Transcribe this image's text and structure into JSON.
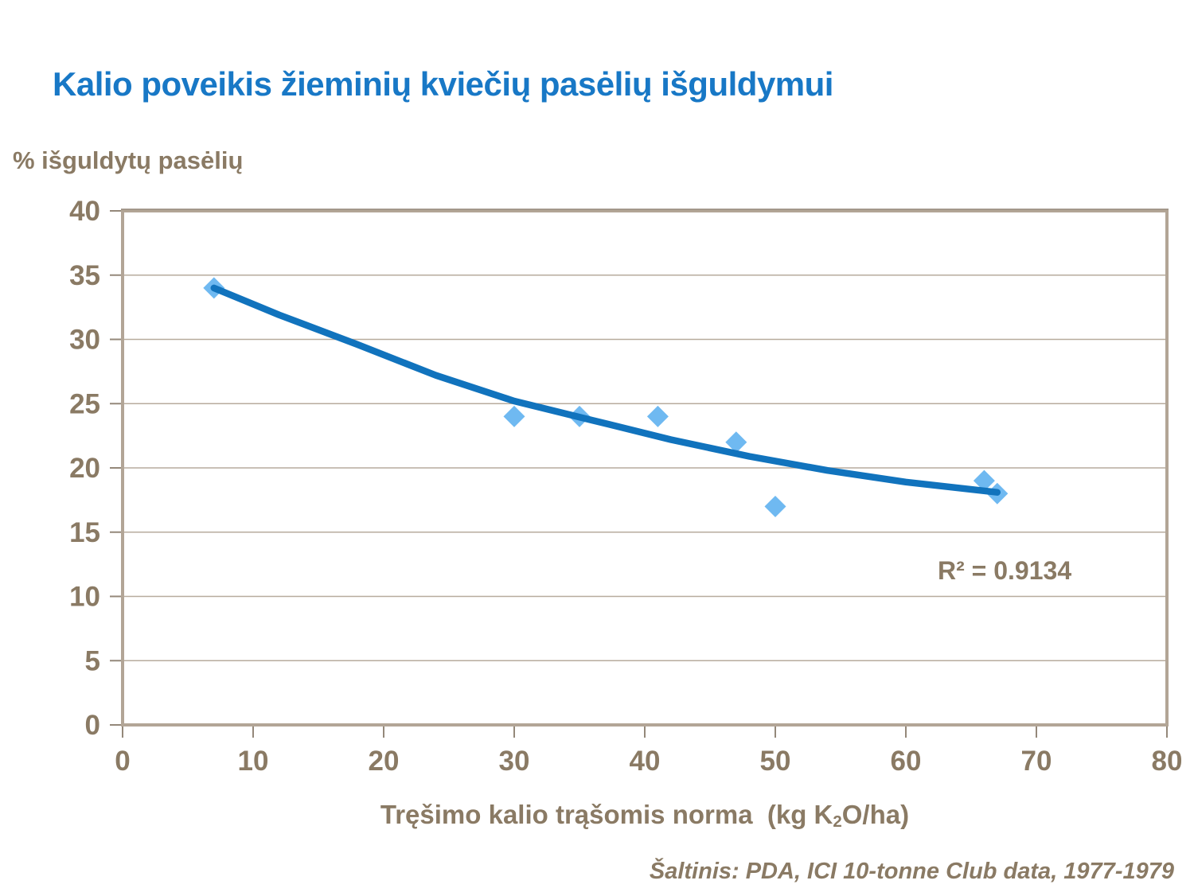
{
  "chart_data": {
    "type": "scatter",
    "title": "Kalio poveikis žieminių kviečių pasėlių išguldymui",
    "y_axis_unit_label": "% išguldytų pasėlių",
    "x_axis_label": "Tręšimo kalio trąšomis norma  (kg K2O/ha)",
    "x_axis_label_parts": {
      "pre": "Tręšimo kalio trąšomis norma  (kg K",
      "sub": "2",
      "post": "O/ha)"
    },
    "points": [
      [
        7,
        34
      ],
      [
        30,
        24
      ],
      [
        35,
        24
      ],
      [
        41,
        24
      ],
      [
        47,
        22
      ],
      [
        50,
        17
      ],
      [
        66,
        19
      ],
      [
        67,
        18
      ]
    ],
    "trendline": {
      "fit": "decreasing regression curve",
      "r2_label": "R² = 0.9134",
      "samples": [
        [
          7,
          34.0
        ],
        [
          12,
          31.9
        ],
        [
          18,
          29.6
        ],
        [
          24,
          27.2
        ],
        [
          30,
          25.2
        ],
        [
          36,
          23.7
        ],
        [
          42,
          22.2
        ],
        [
          48,
          20.9
        ],
        [
          54,
          19.8
        ],
        [
          60,
          18.9
        ],
        [
          67,
          18.1
        ]
      ]
    },
    "xlim": [
      0,
      80
    ],
    "ylim": [
      0,
      40
    ],
    "x_ticks": [
      0,
      10,
      20,
      30,
      40,
      50,
      60,
      70,
      80
    ],
    "y_ticks": [
      0,
      5,
      10,
      15,
      20,
      25,
      30,
      35,
      40
    ],
    "grid": "horizontal gridlines only",
    "legend": "none",
    "source": "Šaltinis: PDA, ICI 10-tonne Club data, 1977-1979",
    "colors": {
      "title": "#1878C6",
      "axis_text": "#8A7A64",
      "marker": "#6FB9F1",
      "trend_line": "#1173BD",
      "gridline": "#B7AB9D",
      "plot_border": "#B2A596",
      "tick_mark": "#94887A"
    }
  }
}
